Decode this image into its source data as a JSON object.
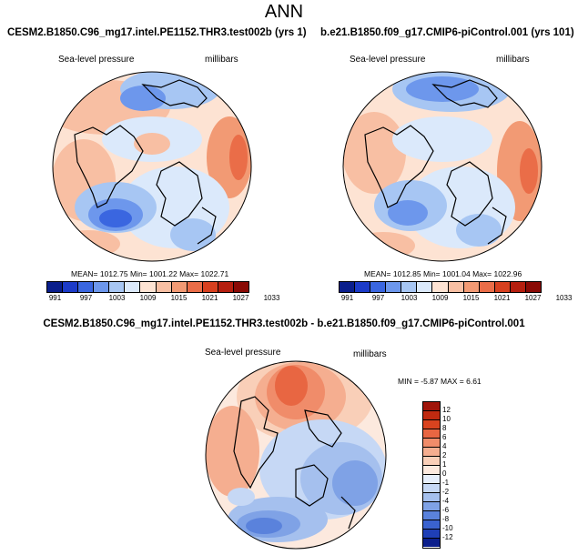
{
  "title": "ANN",
  "panels": [
    {
      "id": "left",
      "title": "CESM2.B1850.C96_mg17.intel.PE1152.THR3.test002b (yrs 1)",
      "variable": "Sea-level pressure",
      "units": "millibars",
      "mean_text": "MEAN= 1012.75  Min= 1001.22  Max= 1022.71",
      "stats": {
        "mean": 1012.75,
        "min": 1001.22,
        "max": 1022.71
      }
    },
    {
      "id": "right",
      "title": "b.e21.B1850.f09_g17.CMIP6-piControl.001 (yrs 101)",
      "variable": "Sea-level pressure",
      "units": "millibars",
      "mean_text": "MEAN= 1012.85  Min= 1001.04  Max= 1022.96",
      "stats": {
        "mean": 1012.85,
        "min": 1001.04,
        "max": 1022.96
      }
    },
    {
      "id": "diff",
      "title": "CESM2.B1850.C96_mg17.intel.PE1152.THR3.test002b - b.e21.B1850.f09_g17.CMIP6-piControl.001",
      "variable": "Sea-level pressure",
      "units": "millibars",
      "minmax_text": "MIN =  -5.87 MAX =   6.61",
      "stats": {
        "min": -5.87,
        "max": 6.61
      }
    }
  ],
  "abs_colorbar": {
    "labels": [
      "991",
      "997",
      "1003",
      "1009",
      "1015",
      "1021",
      "1027",
      "1033"
    ],
    "colors": [
      "#0a1e8c",
      "#1c3bc8",
      "#3a66e0",
      "#6d97ec",
      "#a7c6f3",
      "#dbe9fb",
      "#fde3d3",
      "#f8bfa3",
      "#f29a74",
      "#ea6d48",
      "#d7401f",
      "#b51f0f",
      "#8a0a05"
    ]
  },
  "diff_colorbar": {
    "labels": [
      "12",
      "10",
      "8",
      "6",
      "4",
      "2",
      "1",
      "0",
      "-1",
      "-2",
      "-4",
      "-6",
      "-8",
      "-10",
      "-12"
    ],
    "colors": [
      "#a0150a",
      "#c02a10",
      "#d9431f",
      "#e86642",
      "#f08c6a",
      "#f5ae90",
      "#f9cfb8",
      "#fce9de",
      "#e6eefb",
      "#c6d8f5",
      "#a5c0ee",
      "#7fa2e6",
      "#5a82dc",
      "#3a62cf",
      "#1f3fb7",
      "#0c1f8c"
    ]
  }
}
